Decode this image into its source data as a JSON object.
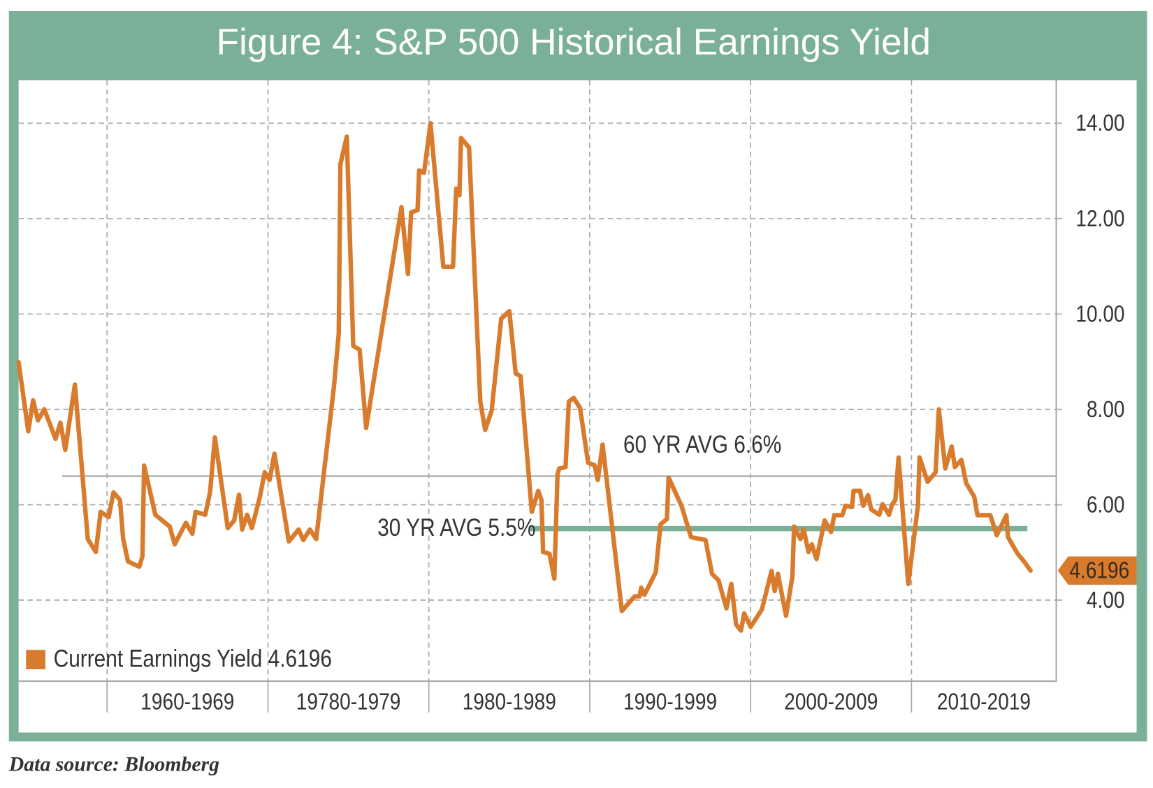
{
  "chart_data": {
    "type": "line",
    "title": "Figure 4:  S&P 500 Historical Earnings Yield",
    "source": "Data source: Bloomberg",
    "end_label": "4.6196",
    "xlim": [
      1954.5,
      2019
    ],
    "xticks": [
      {
        "value": 1960,
        "label": "1960-1969"
      },
      {
        "value": 1970,
        "label": "19780-1979"
      },
      {
        "value": 1980,
        "label": "1980-1989"
      },
      {
        "value": 1990,
        "label": "1990-1999"
      },
      {
        "value": 2000,
        "label": "2000-2009"
      },
      {
        "value": 2010,
        "label": "2010-2019"
      }
    ],
    "ylim": [
      2.3,
      14.9
    ],
    "yticks": [
      {
        "value": 4,
        "label": "4.00"
      },
      {
        "value": 6,
        "label": "6.00"
      },
      {
        "value": 8,
        "label": "8.00"
      },
      {
        "value": 10,
        "label": "10.00"
      },
      {
        "value": 12,
        "label": "12.00"
      },
      {
        "value": 14,
        "label": "14.00"
      }
    ],
    "grid": true,
    "legend": "lower-left",
    "reference_lines": [
      {
        "label": "60 YR AVG 6.6%",
        "value": 6.6,
        "xrange": [
          1957.2,
          2019
        ],
        "color": "#a0a0a0"
      },
      {
        "label": "30 YR AVG 5.5%",
        "value": 5.5,
        "xrange": [
          1986.3,
          2017.2
        ],
        "color": "#7aaf98"
      }
    ],
    "series": [
      {
        "name": "Current Earnings Yield 4.6196",
        "color": "#d97b2c",
        "x": [
          1954.5,
          1955.1,
          1955.4,
          1955.7,
          1956.1,
          1956.8,
          1957.1,
          1957.4,
          1958.0,
          1958.8,
          1959.3,
          1959.6,
          1960.1,
          1960.4,
          1960.8,
          1961.0,
          1961.3,
          1962.0,
          1962.2,
          1962.3,
          1963.0,
          1963.9,
          1964.2,
          1964.9,
          1965.3,
          1965.5,
          1966.1,
          1966.4,
          1966.7,
          1967.5,
          1967.9,
          1968.2,
          1968.4,
          1968.7,
          1969.0,
          1969.5,
          1969.8,
          1970.1,
          1970.4,
          1971.3,
          1971.9,
          1972.2,
          1972.6,
          1973.0,
          1974.1,
          1974.4,
          1974.5,
          1974.9,
          1975.3,
          1975.7,
          1976.1,
          1978.3,
          1978.7,
          1978.9,
          1979.3,
          1979.4,
          1979.7,
          1980.1,
          1980.9,
          1981.5,
          1981.7,
          1981.9,
          1982.0,
          1982.5,
          1983.2,
          1983.5,
          1983.9,
          1984.5,
          1985.0,
          1985.4,
          1985.7,
          1986.4,
          1986.8,
          1987.0,
          1987.1,
          1987.5,
          1987.8,
          1988.0,
          1988.1,
          1988.5,
          1988.7,
          1989.0,
          1989.4,
          1989.9,
          1990.3,
          1990.5,
          1990.8,
          1992.0,
          1992.8,
          1993.1,
          1993.2,
          1993.4,
          1994.1,
          1994.4,
          1994.8,
          1994.9,
          1995.7,
          1996.3,
          1997.2,
          1997.6,
          1998.0,
          1998.5,
          1998.8,
          1999.1,
          1999.4,
          1999.6,
          2000.0,
          2000.7,
          2001.3,
          2001.5,
          2001.7,
          2002.2,
          2002.6,
          2002.7,
          2003.1,
          2003.3,
          2003.6,
          2003.8,
          2004.1,
          2004.6,
          2005.0,
          2005.2,
          2005.7,
          2005.9,
          2006.3,
          2006.4,
          2006.8,
          2007.0,
          2007.3,
          2007.5,
          2008.0,
          2008.2,
          2008.6,
          2008.8,
          2009.0,
          2009.2,
          2009.5,
          2009.8,
          2010.4,
          2010.5,
          2011.0,
          2011.5,
          2011.7,
          2012.1,
          2012.5,
          2012.7,
          2013.1,
          2013.4,
          2013.9,
          2014.1,
          2014.9,
          2015.3,
          2015.9,
          2016.0,
          2016.6,
          2017.0,
          2017.4
        ],
        "values": [
          8.99,
          7.54,
          8.19,
          7.77,
          8.0,
          7.38,
          7.72,
          7.15,
          8.52,
          5.28,
          5.01,
          5.85,
          5.74,
          6.26,
          6.1,
          5.28,
          4.81,
          4.7,
          4.92,
          6.82,
          5.79,
          5.54,
          5.17,
          5.62,
          5.39,
          5.85,
          5.79,
          6.26,
          7.41,
          5.51,
          5.67,
          6.21,
          5.48,
          5.79,
          5.51,
          6.17,
          6.68,
          6.52,
          7.07,
          5.23,
          5.48,
          5.26,
          5.48,
          5.28,
          8.47,
          9.59,
          13.14,
          13.72,
          9.33,
          9.25,
          7.61,
          12.24,
          10.84,
          12.13,
          12.18,
          13.01,
          12.96,
          14.0,
          10.99,
          10.99,
          12.63,
          12.49,
          13.69,
          13.49,
          8.16,
          7.57,
          7.97,
          9.9,
          10.06,
          8.75,
          8.7,
          5.85,
          6.29,
          6.1,
          5.01,
          4.97,
          4.45,
          6.63,
          6.76,
          6.79,
          8.16,
          8.24,
          8.03,
          6.88,
          6.83,
          6.52,
          7.26,
          3.77,
          4.08,
          4.08,
          4.26,
          4.11,
          4.58,
          5.59,
          5.7,
          6.57,
          5.98,
          5.32,
          5.26,
          4.55,
          4.42,
          3.83,
          4.34,
          3.49,
          3.36,
          3.72,
          3.44,
          3.8,
          4.61,
          4.19,
          4.55,
          3.67,
          4.5,
          5.54,
          5.28,
          5.48,
          5.01,
          5.17,
          4.86,
          5.67,
          5.43,
          5.78,
          5.78,
          5.98,
          5.95,
          6.29,
          6.29,
          5.98,
          6.2,
          5.9,
          5.79,
          6.01,
          5.79,
          6.01,
          6.1,
          6.99,
          5.67,
          4.34,
          5.98,
          6.99,
          6.48,
          6.68,
          8.0,
          6.76,
          7.22,
          6.79,
          6.94,
          6.45,
          6.17,
          5.78,
          5.78,
          5.36,
          5.78,
          5.32,
          4.97,
          4.81,
          4.6196
        ]
      }
    ]
  }
}
